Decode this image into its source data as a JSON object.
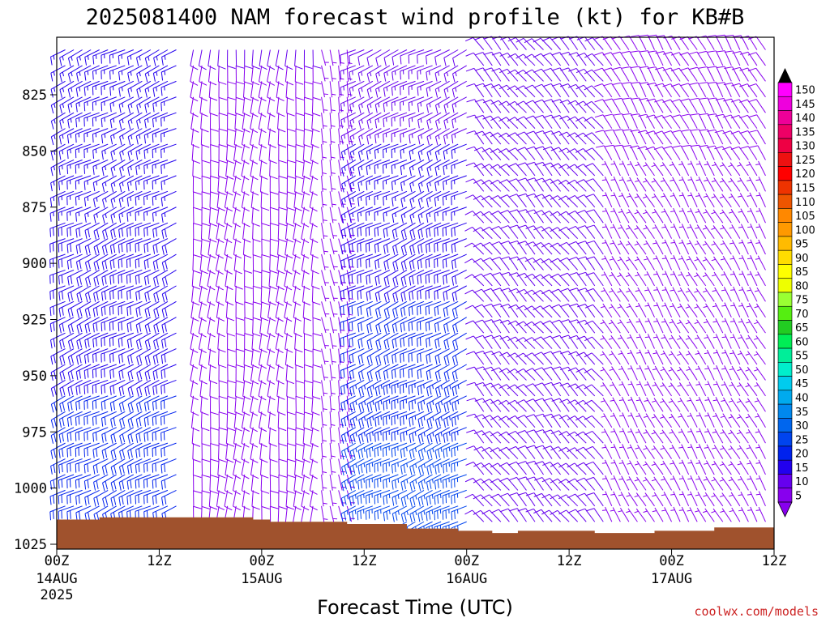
{
  "chart_data": {
    "type": "wind-barb-time-height",
    "title": "2025081400 NAM forecast wind profile (kt) for KB#B",
    "xlabel": "Forecast Time (UTC)",
    "credit": "coolwx.com/models",
    "units": "kt",
    "yticks": [
      825,
      850,
      875,
      900,
      925,
      950,
      975,
      1000,
      1025
    ],
    "ylim": [
      1025,
      800
    ],
    "xticks": [
      {
        "hour": 0,
        "label": "00Z",
        "date": "14AUG",
        "year": "2025"
      },
      {
        "hour": 12,
        "label": "12Z",
        "date": "",
        "year": ""
      },
      {
        "hour": 24,
        "label": "00Z",
        "date": "15AUG",
        "year": ""
      },
      {
        "hour": 36,
        "label": "12Z",
        "date": "",
        "year": ""
      },
      {
        "hour": 48,
        "label": "00Z",
        "date": "16AUG",
        "year": ""
      },
      {
        "hour": 60,
        "label": "12Z",
        "date": "",
        "year": ""
      },
      {
        "hour": 72,
        "label": "00Z",
        "date": "17AUG",
        "year": ""
      },
      {
        "hour": 84,
        "label": "12Z",
        "date": "",
        "year": ""
      }
    ],
    "xlim": [
      0,
      84
    ],
    "colorbar": {
      "labels": [
        150,
        145,
        140,
        135,
        130,
        125,
        120,
        115,
        110,
        105,
        100,
        95,
        90,
        85,
        80,
        75,
        70,
        65,
        60,
        55,
        50,
        45,
        40,
        35,
        30,
        25,
        20,
        15,
        10,
        5
      ],
      "colors": [
        "#ff00ff",
        "#ee00dd",
        "#ee0099",
        "#ee0066",
        "#ee0044",
        "#ee1111",
        "#ff0000",
        "#ee3300",
        "#ee5500",
        "#ff8800",
        "#ff9900",
        "#ffbb00",
        "#ffdd00",
        "#ffff00",
        "#eeff00",
        "#99ff33",
        "#55ee11",
        "#22cc22",
        "#00ee55",
        "#00ee99",
        "#00eecc",
        "#00ccee",
        "#00aaee",
        "#0088ee",
        "#0066ee",
        "#0044ee",
        "#0022ee",
        "#2200ee",
        "#6600ee",
        "#8800ee"
      ]
    },
    "terrain_color": "#a0522d",
    "surface_pressure": [
      {
        "hour": 0,
        "p": 1014
      },
      {
        "hour": 5,
        "p": 1013
      },
      {
        "hour": 23,
        "p": 1014
      },
      {
        "hour": 25,
        "p": 1015
      },
      {
        "hour": 34,
        "p": 1016
      },
      {
        "hour": 41,
        "p": 1018
      },
      {
        "hour": 47,
        "p": 1019
      },
      {
        "hour": 51,
        "p": 1020
      },
      {
        "hour": 54,
        "p": 1019
      },
      {
        "hour": 63,
        "p": 1020
      },
      {
        "hour": 70,
        "p": 1019
      },
      {
        "hour": 77,
        "p": 1017.5
      },
      {
        "hour": 84,
        "p": 1017.5
      }
    ],
    "wind_regimes": [
      {
        "from_hour": 0,
        "to_hour": 14,
        "direction_deg": 245,
        "speed_kt": 15,
        "low_level_speed_kt": 22
      },
      {
        "from_hour": 16,
        "to_hour": 30,
        "direction_deg": 185,
        "speed_kt": 10,
        "low_level_speed_kt": 8
      },
      {
        "from_hour": 30,
        "to_hour": 34,
        "direction_deg": 170,
        "speed_kt": 3,
        "low_level_speed_kt": 5
      },
      {
        "from_hour": 35,
        "to_hour": 48,
        "direction_deg": 245,
        "speed_kt": 12,
        "low_level_speed_kt": 28
      },
      {
        "from_hour": 50,
        "to_hour": 64,
        "direction_deg": 320,
        "speed_kt": 10,
        "low_level_speed_kt": 12
      },
      {
        "from_hour": 64,
        "to_hour": 84,
        "direction_deg": 330,
        "speed_kt": 8,
        "low_level_speed_kt": 6
      }
    ]
  }
}
